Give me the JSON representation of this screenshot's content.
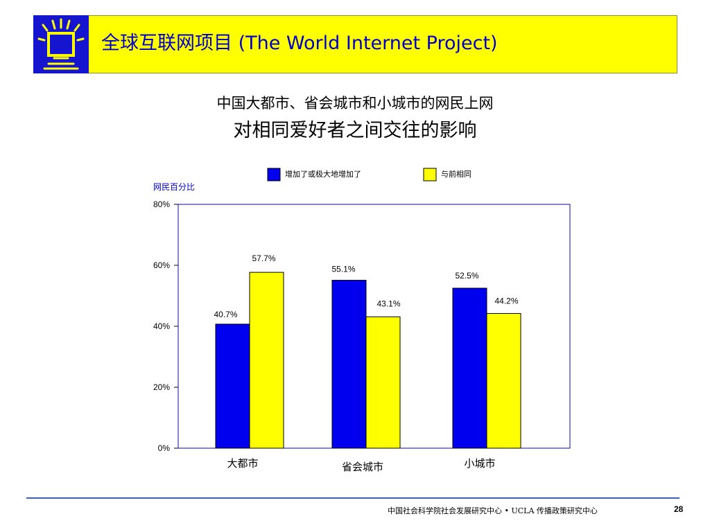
{
  "header": {
    "title": "全球互联网项目 (The World Internet Project)"
  },
  "subtitle": {
    "line1": "中国大都市、省会城市和小城市的网民上网",
    "line2": "对相同爱好者之间交往的影响"
  },
  "chart_data": {
    "type": "bar",
    "ylabel": "网民百分比",
    "ylim": [
      0,
      80
    ],
    "yticks": [
      "0%",
      "20%",
      "40%",
      "60%",
      "80%"
    ],
    "grid": false,
    "legend_position": "top",
    "categories": [
      "大都市",
      "省会城市",
      "小城市"
    ],
    "series": [
      {
        "name": "增加了或极大地增加了",
        "color": "#0000ee",
        "values": [
          40.7,
          55.1,
          52.5
        ],
        "labels": [
          "40.7%",
          "55.1%",
          "52.5%"
        ]
      },
      {
        "name": "与前相同",
        "color": "#ffff00",
        "values": [
          57.7,
          43.1,
          44.2
        ],
        "labels": [
          "57.7%",
          "43.1%",
          "44.2%"
        ]
      }
    ]
  },
  "colors": {
    "header_background": "#ffff00",
    "logo_background": "#1515d0",
    "title_text": "#0000cc",
    "axis_label_text": "#0000cc",
    "footer_line": "#3a5fb0"
  },
  "footer": {
    "text": "中国社会科学院社会发展研究中心 • UCLA 传播政策研究中心",
    "page_number": "28"
  }
}
